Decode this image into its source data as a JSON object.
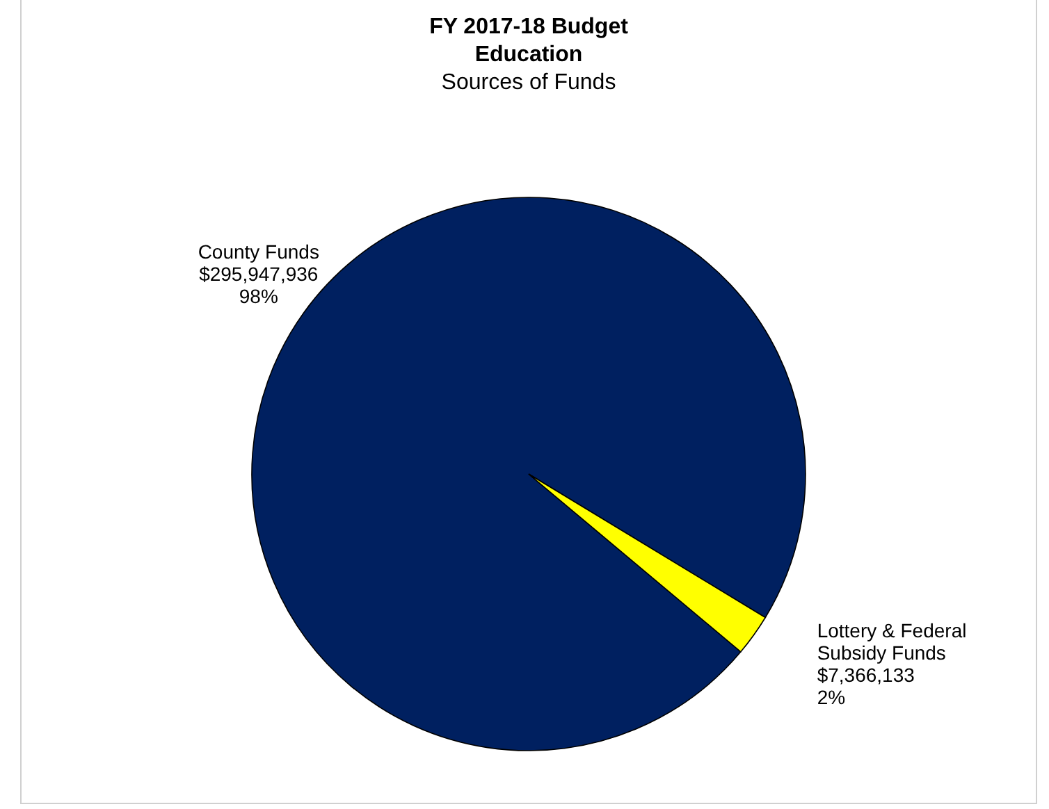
{
  "chart_data": {
    "type": "pie",
    "title": "FY 2017-18 Budget\nEducation",
    "subtitle": "Sources of Funds",
    "categories": [
      "County Funds",
      "Lottery & Federal\nSubsidy Funds"
    ],
    "values": [
      295947936,
      7366133
    ],
    "value_labels": [
      "$295,947,936\n98%",
      "$7,366,133\n2%"
    ],
    "colors": [
      "#002060",
      "#ffff00"
    ]
  }
}
